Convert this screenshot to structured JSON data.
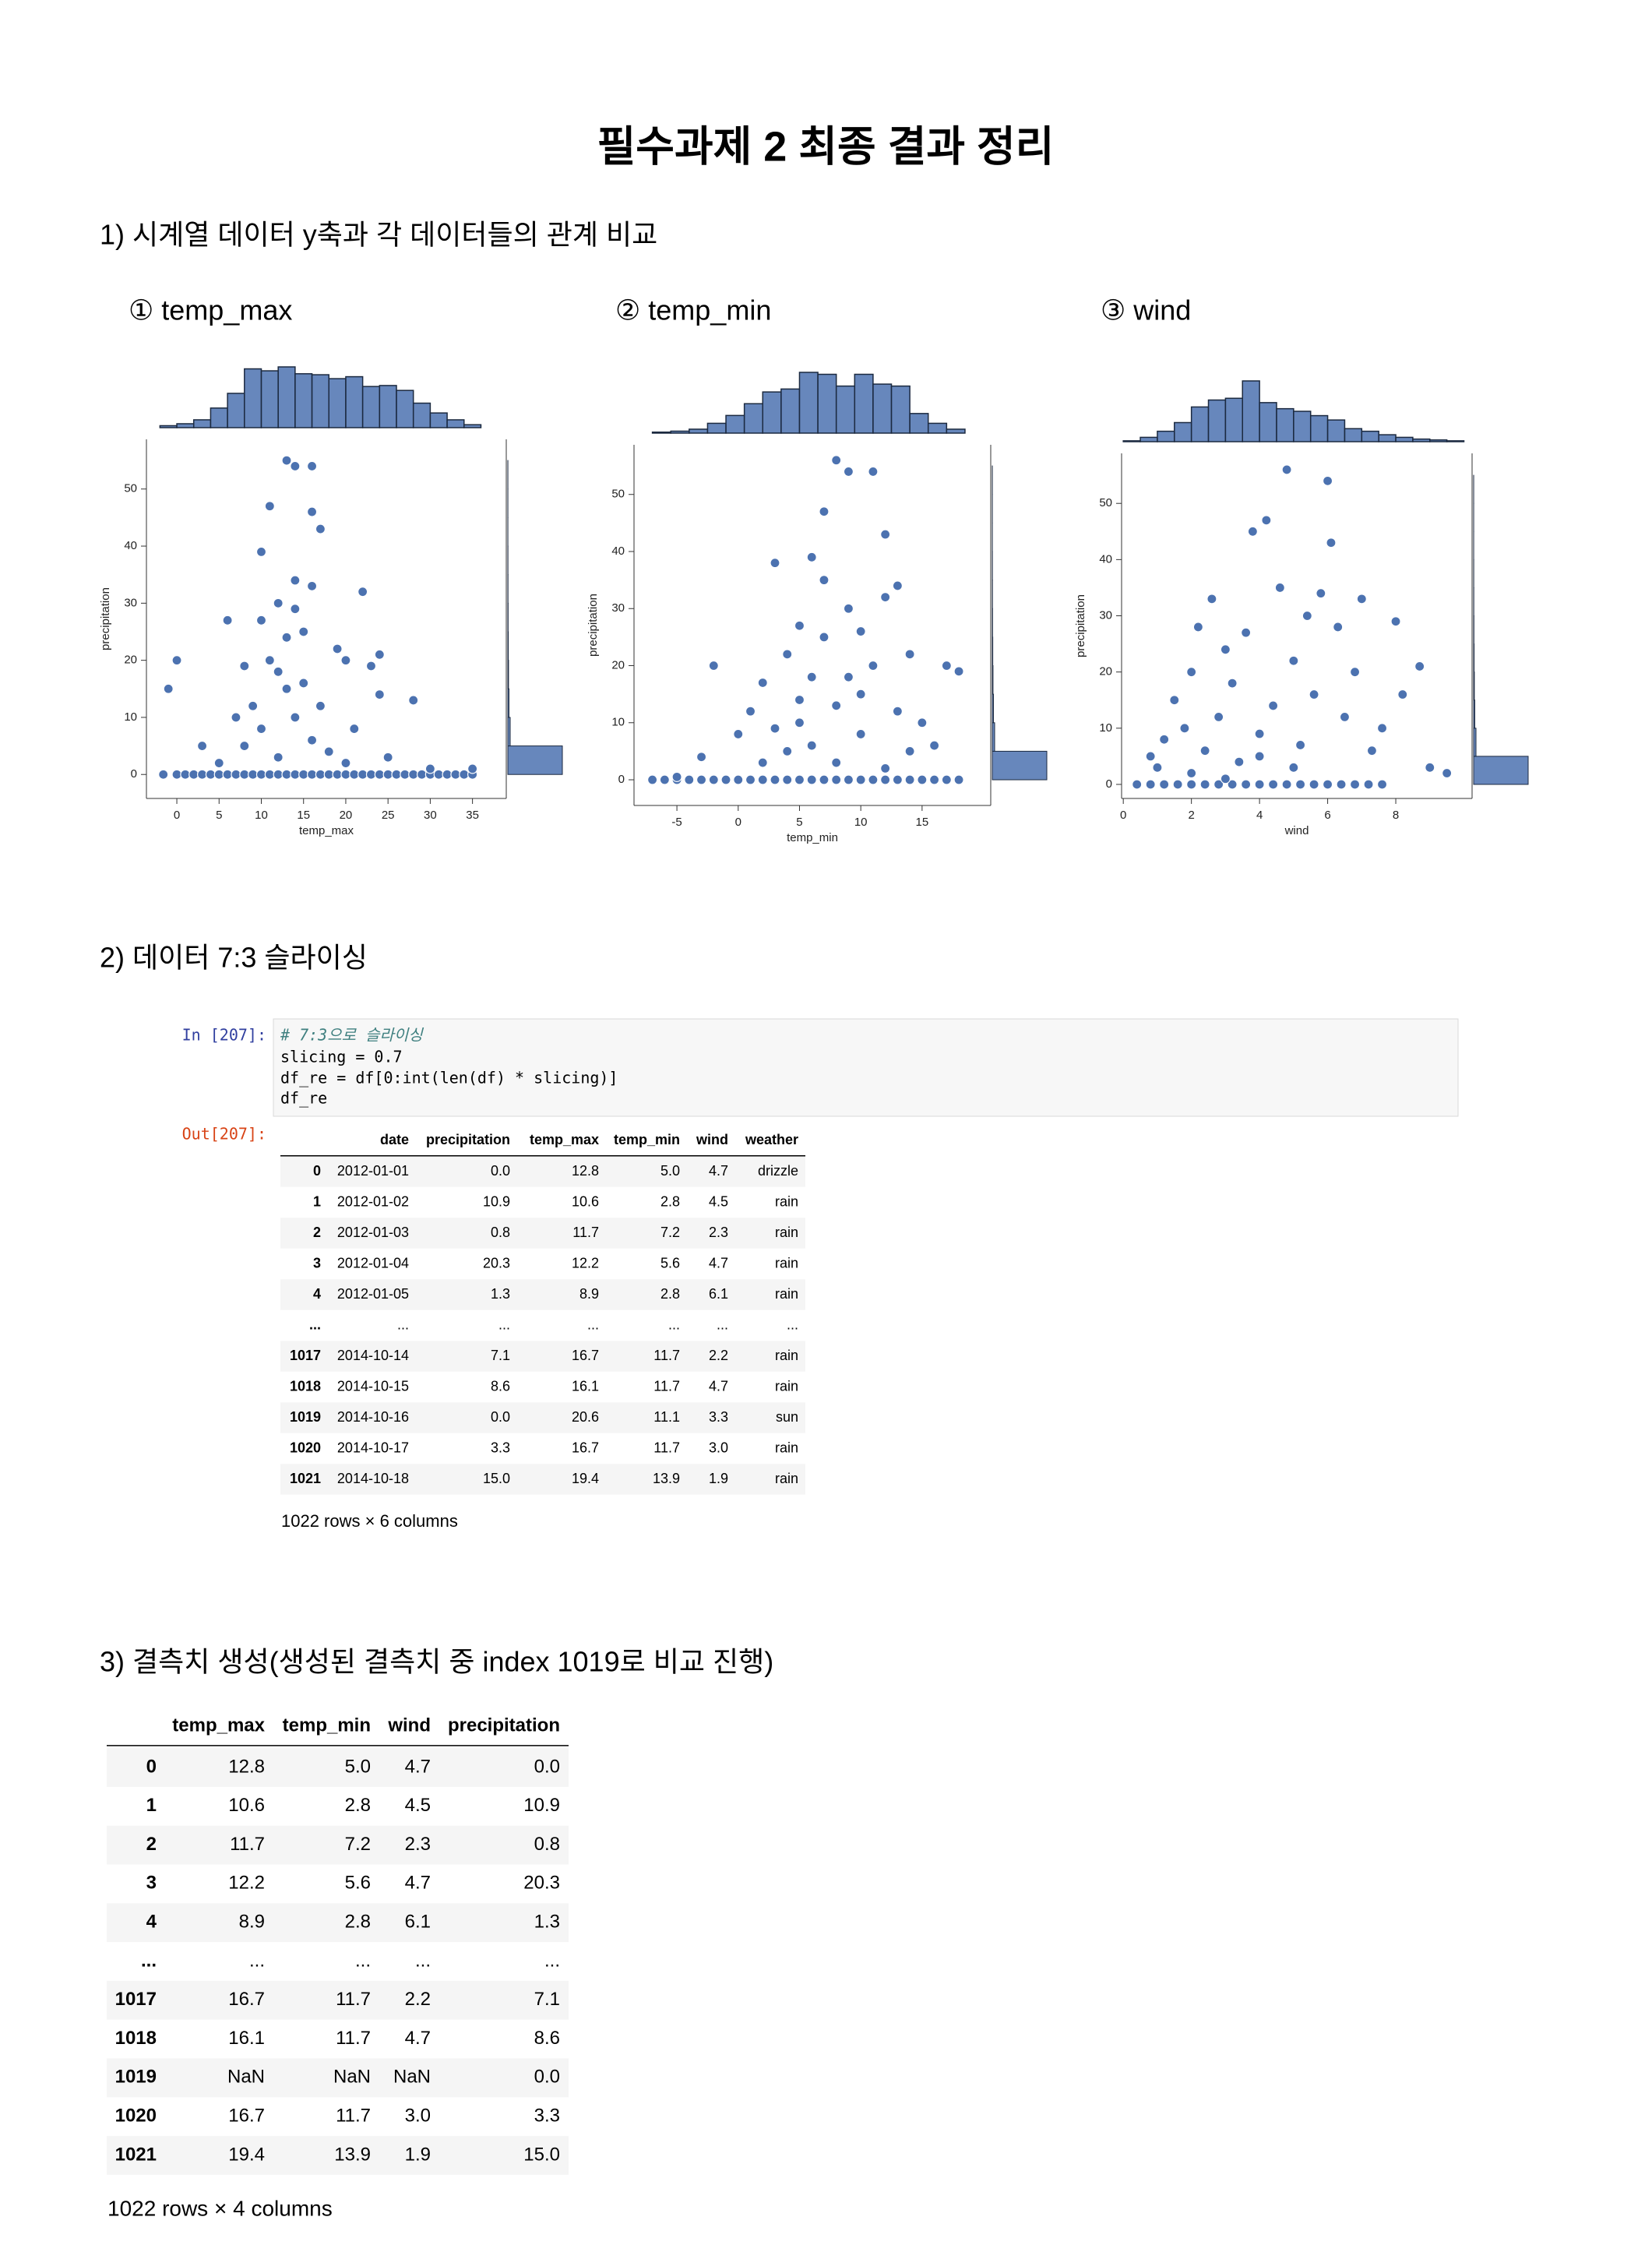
{
  "document": {
    "title": "필수과제 2 최종 결과 정리",
    "section1": "1) 시계열 데이터 y축과 각 데이터들의 관계 비교",
    "section2": "2) 데이터 7:3 슬라이싱",
    "code": {
      "prompt": "In [207]:",
      "lines": [
        "# 7:3으로 슬라이싱",
        "slicing = 0.7",
        "df_re = df[0:int(len(df) * slicing)]",
        "df_re"
      ]
    },
    "output_prompt": "Out[207]:",
    "table1": {
      "columns": [
        "date",
        "precipitation",
        "temp_max",
        "temp_min",
        "wind",
        "weather"
      ],
      "rows": [
        [
          "0",
          "2012-01-01",
          "0.0",
          "12.8",
          "5.0",
          "4.7",
          "drizzle"
        ],
        [
          "1",
          "2012-01-02",
          "10.9",
          "10.6",
          "2.8",
          "4.5",
          "rain"
        ],
        [
          "2",
          "2012-01-03",
          "0.8",
          "11.7",
          "7.2",
          "2.3",
          "rain"
        ],
        [
          "3",
          "2012-01-04",
          "20.3",
          "12.2",
          "5.6",
          "4.7",
          "rain"
        ],
        [
          "4",
          "2012-01-05",
          "1.3",
          "8.9",
          "2.8",
          "6.1",
          "rain"
        ],
        [
          "...",
          "...",
          "...",
          "...",
          "...",
          "...",
          "..."
        ],
        [
          "1017",
          "2014-10-14",
          "7.1",
          "16.7",
          "11.7",
          "2.2",
          "rain"
        ],
        [
          "1018",
          "2014-10-15",
          "8.6",
          "16.1",
          "11.7",
          "4.7",
          "rain"
        ],
        [
          "1019",
          "2014-10-16",
          "0.0",
          "20.6",
          "11.1",
          "3.3",
          "sun"
        ],
        [
          "1020",
          "2014-10-17",
          "3.3",
          "16.7",
          "11.7",
          "3.0",
          "rain"
        ],
        [
          "1021",
          "2014-10-18",
          "15.0",
          "19.4",
          "13.9",
          "1.9",
          "rain"
        ]
      ],
      "footer": "1022 rows × 6 columns"
    },
    "section3": "3) 결측치 생성(생성된 결측치 중 index 1019로 비교 진행)",
    "table2": {
      "columns": [
        "temp_max",
        "temp_min",
        "wind",
        "precipitation"
      ],
      "rows": [
        [
          "0",
          "12.8",
          "5.0",
          "4.7",
          "0.0"
        ],
        [
          "1",
          "10.6",
          "2.8",
          "4.5",
          "10.9"
        ],
        [
          "2",
          "11.7",
          "7.2",
          "2.3",
          "0.8"
        ],
        [
          "3",
          "12.2",
          "5.6",
          "4.7",
          "20.3"
        ],
        [
          "4",
          "8.9",
          "2.8",
          "6.1",
          "1.3"
        ],
        [
          "...",
          "...",
          "...",
          "...",
          "..."
        ],
        [
          "1017",
          "16.7",
          "11.7",
          "2.2",
          "7.1"
        ],
        [
          "1018",
          "16.1",
          "11.7",
          "4.7",
          "8.6"
        ],
        [
          "1019",
          "NaN",
          "NaN",
          "NaN",
          "0.0"
        ],
        [
          "1020",
          "16.7",
          "11.7",
          "3.0",
          "3.3"
        ],
        [
          "1021",
          "19.4",
          "13.9",
          "1.9",
          "15.0"
        ]
      ],
      "footer": "1022 rows × 4 columns"
    }
  },
  "chart_data": [
    {
      "type": "scatter",
      "title": "① temp_max",
      "x_label": "temp_max",
      "y_label": "precipitation",
      "color": "#4c72b0",
      "xlim": [
        -3.6,
        39
      ],
      "ylim": [
        -4.2,
        58.7
      ],
      "xticks": [
        0,
        5,
        10,
        15,
        20,
        25,
        30,
        35
      ],
      "yticks": [
        0,
        10,
        20,
        30,
        40,
        50
      ],
      "x": [
        -1.6,
        0,
        1,
        2,
        3,
        4,
        5,
        6,
        7,
        8,
        9,
        10,
        11,
        12,
        13,
        14,
        15,
        16,
        17,
        18,
        19,
        20,
        21,
        22,
        23,
        24,
        25,
        26,
        27,
        28,
        29,
        30,
        31,
        32,
        33,
        34,
        35,
        5,
        8,
        10,
        12,
        14,
        16,
        18,
        20,
        9,
        13,
        11,
        15,
        12,
        14,
        16,
        11,
        13,
        14,
        16,
        10,
        17,
        19,
        22,
        24,
        6,
        0,
        -1,
        28,
        24,
        3,
        7,
        12,
        15,
        17,
        21,
        25,
        30,
        35,
        8,
        10,
        13,
        16,
        20,
        23,
        14
      ],
      "y": [
        0,
        0,
        0,
        0,
        0,
        0,
        0,
        0,
        0,
        0,
        0,
        0,
        0,
        0,
        0,
        0,
        0,
        0,
        0,
        0,
        0,
        0,
        0,
        0,
        0,
        0,
        0,
        0,
        0,
        0,
        0,
        0,
        0,
        0,
        0,
        0,
        0,
        2,
        5,
        8,
        3,
        10,
        6,
        4,
        2,
        12,
        15,
        20,
        25,
        30,
        34,
        46,
        47,
        55,
        54,
        54,
        39,
        43,
        22,
        32,
        21,
        27,
        20,
        15,
        13,
        14,
        5,
        10,
        18,
        16,
        12,
        8,
        3,
        1,
        1,
        19,
        27,
        24,
        33,
        20,
        19,
        29
      ],
      "hist_bins": [
        -2,
        0,
        2,
        4,
        6,
        8,
        10,
        12,
        14,
        16,
        18,
        20,
        22,
        24,
        26,
        28,
        30,
        32,
        34,
        36
      ],
      "hist_counts": [
        2,
        4,
        8,
        20,
        35,
        60,
        58,
        62,
        55,
        54,
        50,
        52,
        42,
        43,
        38,
        25,
        15,
        8,
        3
      ],
      "y_hist_bins": [
        0,
        5,
        10,
        15,
        20,
        25,
        30,
        35,
        40,
        45,
        50,
        55
      ],
      "y_hist_counts": [
        930,
        40,
        20,
        12,
        8,
        5,
        3,
        2,
        1,
        1,
        1
      ]
    },
    {
      "type": "scatter",
      "title": "② temp_min",
      "x_label": "temp_min",
      "y_label": "precipitation",
      "color": "#4c72b0",
      "xlim": [
        -8.5,
        20.6
      ],
      "ylim": [
        -4.5,
        58.7
      ],
      "xticks": [
        -5,
        0,
        5,
        10,
        15
      ],
      "yticks": [
        0,
        10,
        20,
        30,
        40,
        50
      ],
      "x": [
        -7,
        -6,
        -5,
        -4,
        -3,
        -2,
        -1,
        0,
        1,
        2,
        3,
        4,
        5,
        6,
        7,
        8,
        9,
        10,
        11,
        12,
        13,
        14,
        15,
        16,
        17,
        18,
        -5,
        -3,
        -2,
        0,
        1,
        2,
        3,
        4,
        4,
        5,
        5,
        6,
        6,
        7,
        7,
        8,
        8,
        9,
        9,
        10,
        10,
        11,
        11,
        12,
        12,
        13,
        13,
        14,
        14,
        15,
        16,
        17,
        18,
        2,
        3,
        6,
        8,
        10,
        12,
        5,
        7,
        9
      ],
      "y": [
        0,
        0,
        0,
        0,
        0,
        0,
        0,
        0,
        0,
        0,
        0,
        0,
        0,
        0,
        0,
        0,
        0,
        0,
        0,
        0,
        0,
        0,
        0,
        0,
        0,
        0,
        0.5,
        4,
        20,
        8,
        12,
        17,
        38,
        5,
        22,
        27,
        10,
        39,
        18,
        47,
        35,
        56,
        13,
        54,
        30,
        26,
        8,
        54,
        20,
        43,
        32,
        34,
        12,
        22,
        5,
        10,
        6,
        20,
        19,
        3,
        9,
        6,
        3,
        15,
        2,
        14,
        25,
        18
      ],
      "hist_bins": [
        -7,
        -5.5,
        -4,
        -2.5,
        -1,
        0.5,
        2,
        3.5,
        5,
        6.5,
        8,
        9.5,
        11,
        12.5,
        14,
        15.5,
        17,
        18.5
      ],
      "hist_counts": [
        1,
        2,
        4,
        10,
        18,
        30,
        42,
        45,
        62,
        60,
        48,
        60,
        50,
        48,
        20,
        10,
        4
      ],
      "y_hist_bins": [
        0,
        5,
        10,
        15,
        20,
        25,
        30,
        35,
        40,
        45,
        50,
        55
      ],
      "y_hist_counts": [
        930,
        40,
        20,
        12,
        8,
        5,
        3,
        2,
        1,
        1,
        1
      ]
    },
    {
      "type": "scatter",
      "title": "③ wind",
      "x_label": "wind",
      "y_label": "precipitation",
      "color": "#4c72b0",
      "xlim": [
        -0.05,
        10.24
      ],
      "ylim": [
        -2.5,
        58.9
      ],
      "xticks": [
        0,
        2,
        4,
        6,
        8
      ],
      "yticks": [
        0,
        10,
        20,
        30,
        40,
        50
      ],
      "x": [
        0.4,
        0.8,
        1.2,
        1.6,
        2,
        2.4,
        2.8,
        3.2,
        3.6,
        4,
        4.4,
        4.8,
        5.2,
        5.6,
        6,
        6.4,
        6.8,
        7.2,
        7.6,
        0.8,
        1,
        1.2,
        1.5,
        1.8,
        2,
        2.2,
        2.4,
        2.6,
        2.8,
        3,
        3.2,
        3.4,
        3.6,
        3.8,
        4,
        4.2,
        4.4,
        4.6,
        4.8,
        5,
        5.2,
        5.4,
        5.6,
        5.8,
        6,
        6.1,
        6.3,
        6.5,
        6.8,
        7,
        7.3,
        7.6,
        8,
        8.2,
        8.7,
        9,
        9.5,
        3,
        2,
        5,
        4
      ],
      "y": [
        0,
        0,
        0,
        0,
        0,
        0,
        0,
        0,
        0,
        0,
        0,
        0,
        0,
        0,
        0,
        0,
        0,
        0,
        0,
        5,
        3,
        8,
        15,
        10,
        20,
        28,
        6,
        33,
        12,
        24,
        18,
        4,
        27,
        45,
        9,
        47,
        14,
        35,
        56,
        22,
        7,
        30,
        16,
        34,
        54,
        43,
        28,
        12,
        20,
        33,
        6,
        10,
        29,
        16,
        21,
        3,
        2,
        1,
        2,
        3,
        5
      ],
      "hist_bins": [
        0,
        0.5,
        1,
        1.5,
        2,
        2.5,
        3,
        3.5,
        4,
        4.5,
        5,
        5.5,
        6,
        6.5,
        7,
        7.5,
        8,
        8.5,
        9,
        9.5,
        10
      ],
      "hist_counts": [
        1,
        5,
        12,
        22,
        40,
        48,
        50,
        70,
        45,
        38,
        35,
        30,
        25,
        15,
        12,
        8,
        5,
        3,
        2,
        1
      ],
      "y_hist_bins": [
        0,
        5,
        10,
        15,
        20,
        25,
        30,
        35,
        40,
        45,
        50,
        55
      ],
      "y_hist_counts": [
        930,
        40,
        20,
        12,
        8,
        5,
        3,
        2,
        1,
        1,
        1
      ]
    }
  ]
}
